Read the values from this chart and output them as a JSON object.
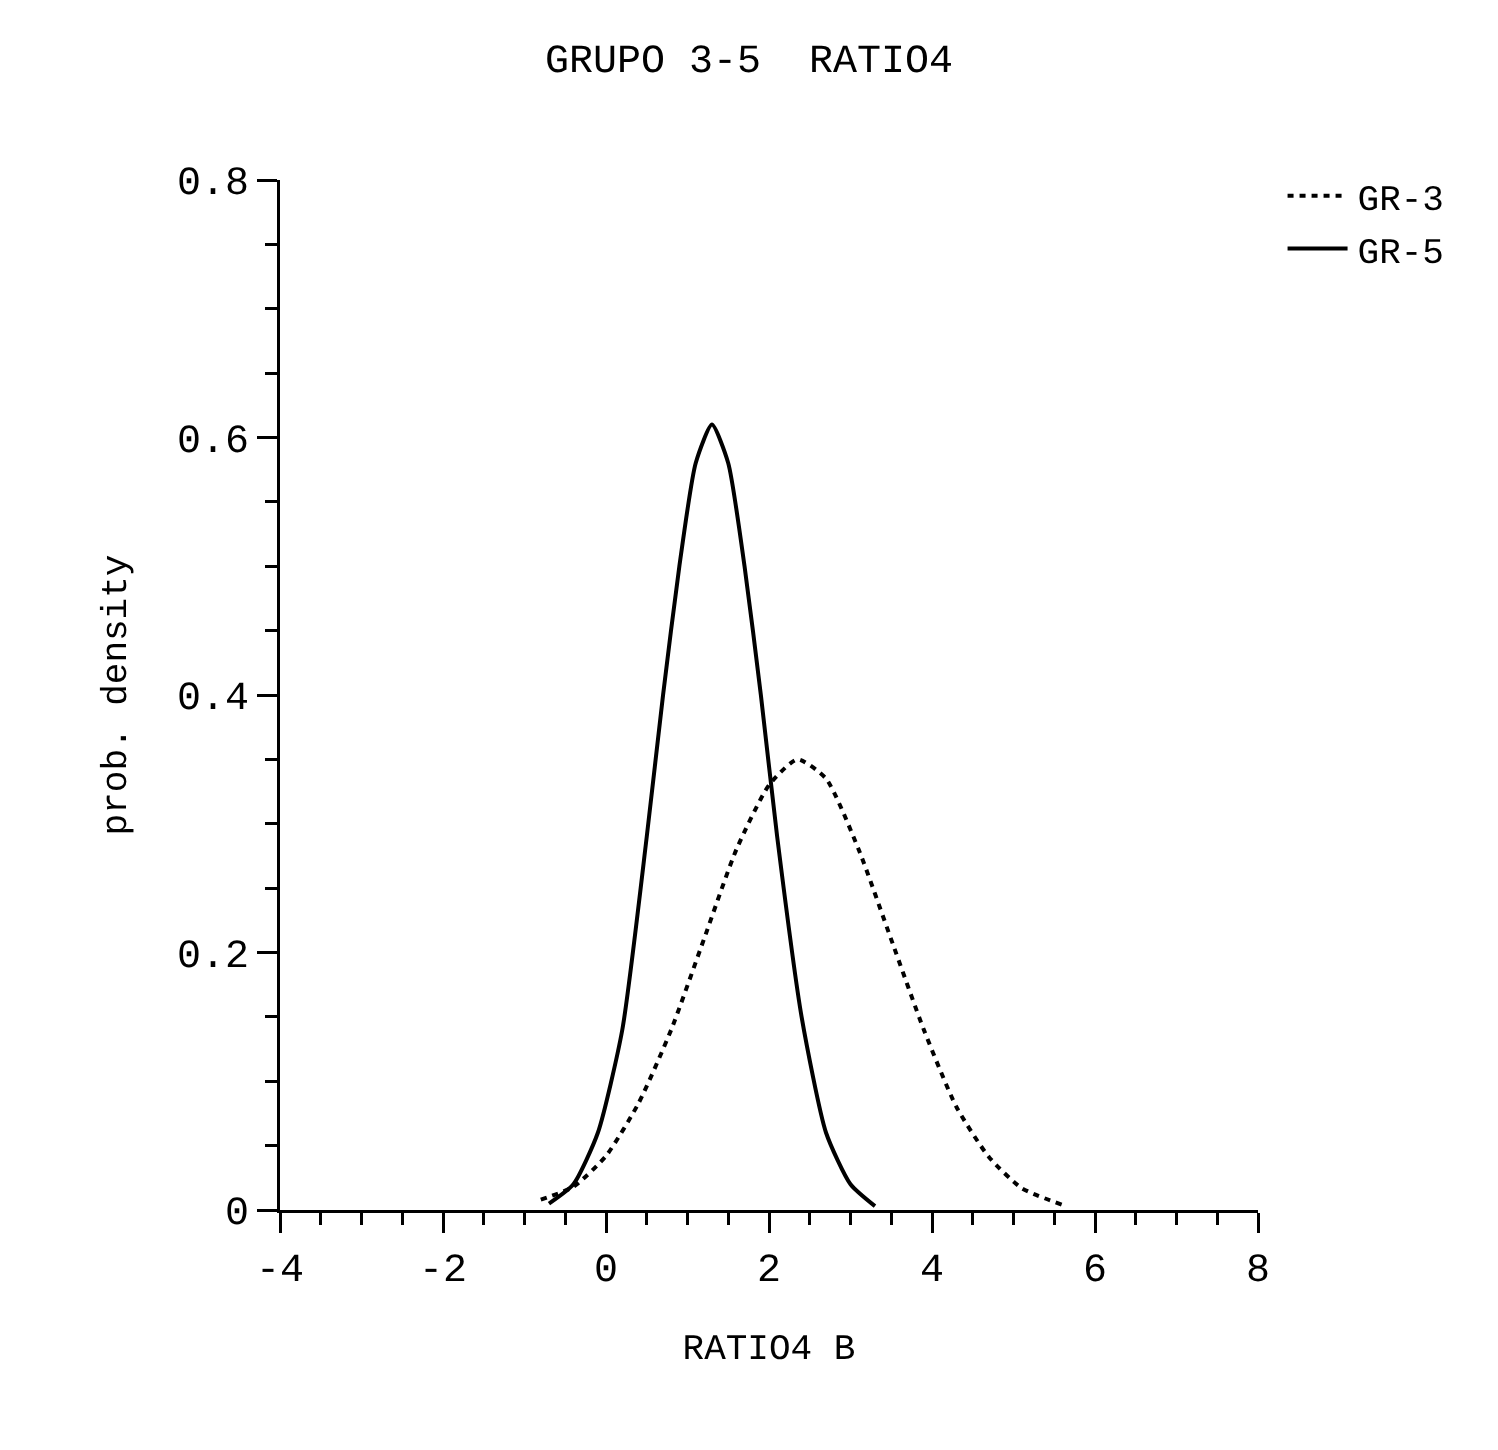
{
  "chart_data": {
    "type": "line",
    "title": "GRUPO 3-5  RATIO4",
    "xlabel": "RATIO4 B",
    "ylabel": "prob. density",
    "xlim": [
      -4,
      8
    ],
    "xticks": [
      -4,
      -2,
      0,
      2,
      4,
      6,
      8
    ],
    "ylim": [
      0,
      0.8
    ],
    "yticks": [
      0,
      0.2,
      0.4,
      0.6,
      0.8
    ],
    "grid": false,
    "legend": "top right",
    "marker": "none",
    "series": [
      {
        "name": "GR-3",
        "color": "#000000",
        "line_style": "dotted",
        "x": [
          -0.8,
          -0.4,
          0,
          0.4,
          0.8,
          1.2,
          1.6,
          2.0,
          2.35,
          2.7,
          3.1,
          3.5,
          3.9,
          4.3,
          4.7,
          5.1,
          5.6
        ],
        "values": [
          0.008,
          0.018,
          0.042,
          0.083,
          0.14,
          0.21,
          0.28,
          0.33,
          0.35,
          0.335,
          0.28,
          0.21,
          0.14,
          0.08,
          0.041,
          0.017,
          0.004
        ]
      },
      {
        "name": "GR-5",
        "color": "#000000",
        "line_style": "solid",
        "x": [
          -0.7,
          -0.4,
          -0.1,
          0.2,
          0.5,
          0.7,
          0.9,
          1.1,
          1.3,
          1.5,
          1.7,
          1.9,
          2.1,
          2.4,
          2.7,
          3.0,
          3.3
        ],
        "values": [
          0.005,
          0.02,
          0.06,
          0.14,
          0.29,
          0.4,
          0.5,
          0.58,
          0.61,
          0.58,
          0.5,
          0.4,
          0.29,
          0.15,
          0.06,
          0.02,
          0.003
        ]
      }
    ]
  }
}
